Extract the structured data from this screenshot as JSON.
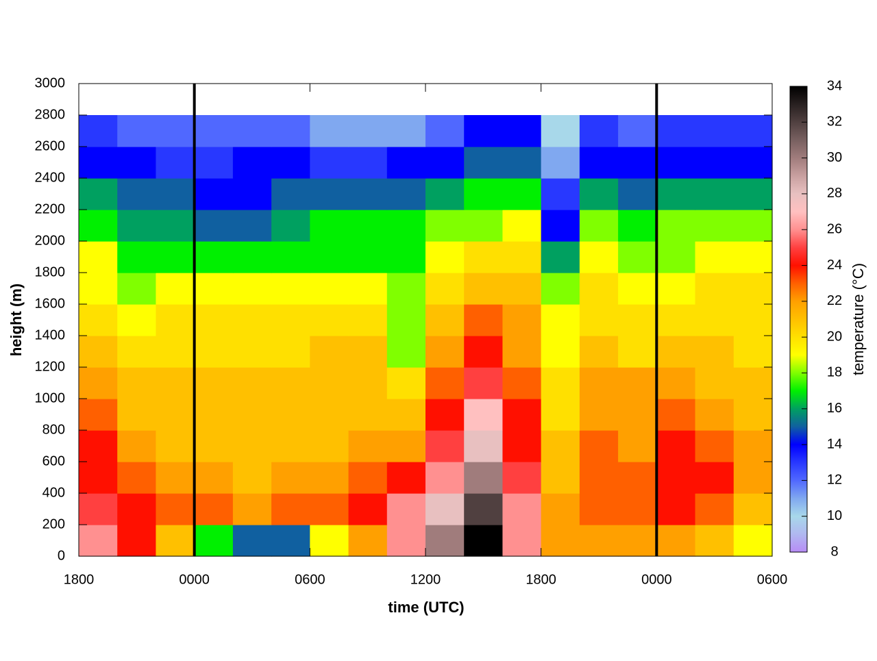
{
  "chart_data": {
    "type": "heatmap",
    "xlabel": "time (UTC)",
    "ylabel": "height (m)",
    "colorbar_label": "temperature (°C)",
    "x": [
      1,
      3,
      5,
      7,
      9,
      11,
      13,
      15,
      17,
      19,
      21,
      23,
      25,
      27,
      29,
      31,
      33,
      35
    ],
    "y": [
      100,
      300,
      500,
      700,
      900,
      1100,
      1300,
      1500,
      1700,
      1900,
      2100,
      2300,
      2500,
      2700
    ],
    "z": [
      [
        25.5,
        24,
        21,
        16.5,
        15,
        15,
        19,
        21.5,
        25.5,
        30,
        34,
        26,
        22,
        21.5,
        21.5,
        21.5,
        20.5,
        19
      ],
      [
        24.5,
        24,
        23,
        22.5,
        22,
        22.5,
        22.5,
        23.5,
        25.5,
        28,
        32,
        26,
        22,
        23,
        22.5,
        24,
        23,
        21
      ],
      [
        24,
        22.5,
        22,
        21.5,
        21,
        21.5,
        22,
        23,
        24,
        26,
        30,
        25,
        21,
        23,
        22.5,
        24,
        23.5,
        21.5
      ],
      [
        23.5,
        21.5,
        21,
        21,
        20.5,
        20.5,
        21,
        21.5,
        22,
        24.5,
        28,
        24,
        20.5,
        22.5,
        22,
        23.5,
        23,
        21.5
      ],
      [
        22.5,
        21,
        20.5,
        20.5,
        20.5,
        20.5,
        20.5,
        20.5,
        21,
        23.5,
        26.5,
        23.5,
        20,
        22,
        21.5,
        22.5,
        22,
        21
      ],
      [
        21.5,
        20.5,
        20.5,
        20.5,
        20.5,
        20.5,
        20.5,
        20.5,
        19.5,
        22.5,
        25,
        22.5,
        19.5,
        21.5,
        21.5,
        21.5,
        21,
        20.5
      ],
      [
        20.5,
        20,
        20,
        19.5,
        20,
        20,
        20.5,
        20.5,
        18,
        21.5,
        23.5,
        22,
        19,
        21,
        20,
        21,
        20.5,
        20
      ],
      [
        19.5,
        19,
        19.5,
        19.5,
        19.5,
        19.5,
        19.5,
        19.5,
        17.5,
        20.5,
        22.5,
        22,
        18.5,
        20,
        19.5,
        20,
        20,
        19.5
      ],
      [
        19,
        18,
        18.5,
        18.5,
        18.5,
        19,
        19,
        19,
        17.5,
        20,
        21,
        21,
        17.5,
        19.5,
        18.5,
        19,
        19.5,
        19.5
      ],
      [
        18.5,
        17,
        17,
        17,
        17,
        17,
        17,
        17,
        17,
        18.5,
        19.5,
        19.5,
        16,
        18.5,
        17.5,
        18,
        18.5,
        18.5
      ],
      [
        17,
        16,
        16,
        15.5,
        15.5,
        16,
        16.5,
        16.5,
        17,
        17.5,
        18,
        18.5,
        14,
        18,
        16.5,
        17.5,
        17.5,
        17.5
      ],
      [
        16,
        15,
        15,
        14,
        14,
        14.5,
        15,
        15,
        15,
        16,
        16.5,
        16.5,
        12.5,
        16,
        15,
        16,
        16,
        16
      ],
      [
        14,
        14,
        13,
        13,
        13.5,
        14,
        13,
        13,
        13.5,
        14,
        15,
        15,
        10.5,
        14,
        13.5,
        14,
        14,
        14
      ],
      [
        13,
        12,
        12,
        11.5,
        12,
        12,
        11,
        11,
        11,
        12,
        14,
        13.5,
        9.5,
        13,
        12,
        13,
        13,
        13
      ]
    ],
    "xlim": [
      0,
      36
    ],
    "xticks": [
      {
        "value": 0,
        "label": "1800"
      },
      {
        "value": 6,
        "label": "0000"
      },
      {
        "value": 12,
        "label": "0600"
      },
      {
        "value": 18,
        "label": "1200"
      },
      {
        "value": 24,
        "label": "1800"
      },
      {
        "value": 30,
        "label": "0000"
      },
      {
        "value": 36,
        "label": "0600"
      }
    ],
    "ylim": [
      0,
      3000
    ],
    "yticks": [
      0,
      200,
      400,
      600,
      800,
      1000,
      1200,
      1400,
      1600,
      1800,
      2000,
      2200,
      2400,
      2600,
      2800,
      3000
    ],
    "clim": [
      8,
      34
    ],
    "cticks": [
      8,
      10,
      12,
      14,
      16,
      18,
      20,
      22,
      24,
      26,
      28,
      30,
      32,
      34
    ],
    "colormap": [
      "#b78cf5",
      "#b0b8f0",
      "#a8d8ea",
      "#80a8f0",
      "#5068ff",
      "#2838ff",
      "#0000ff",
      "#1060a0",
      "#00a060",
      "#00f000",
      "#80ff00",
      "#ffff00",
      "#ffe000",
      "#ffc000",
      "#ffa000",
      "#ff6000",
      "#ff1000",
      "#ff4040",
      "#ff9090",
      "#ffc0c0",
      "#e8c0c0",
      "#c8a0a0",
      "#a07c7c",
      "#786060",
      "#504040",
      "#282020",
      "#000000"
    ],
    "reference_lines": [
      6,
      30
    ],
    "reference_color": "#000000"
  }
}
